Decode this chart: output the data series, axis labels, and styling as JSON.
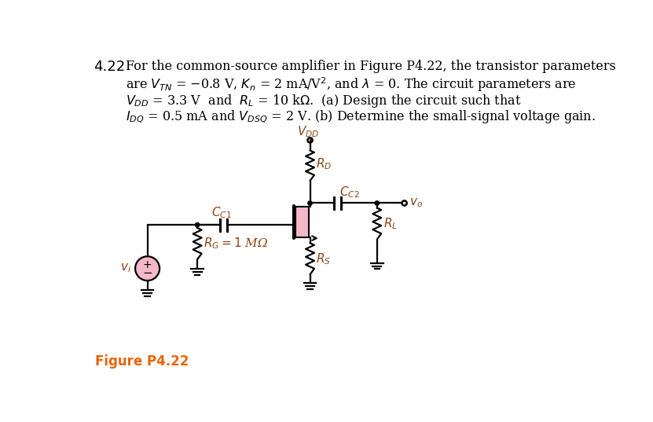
{
  "figure_label": "Figure P4.22",
  "figure_label_color": "#E8650A",
  "background_color": "#ffffff",
  "text_color": "#1a1a2e",
  "label_color": "#8B4513",
  "vdd_label": "$V_{DD}$",
  "rd_label": "$R_D$",
  "cc2_label": "$C_{C2}$",
  "vo_label": "$v_o$",
  "rl_label": "$R_L$",
  "cc1_label": "$C_{C1}$",
  "rg_label": "$R_G = 1$ MΩ",
  "vi_label": "$v_i$",
  "rs_label": "$R_S$",
  "line1": "For the common-source amplifier in Figure P4.22, the transistor parameters",
  "line2": "are $V_{TN}$ = $-$0.8 V, $K_n$ = 2 mA/V$^2$, and $\\lambda$ = 0. The circuit parameters are",
  "line3": "$V_{DD}$ = 3.3 V  and  $R_L$ = 10 k$\\Omega$.  (a) Design the circuit such that",
  "line4": "$I_{DQ}$ = 0.5 mA and $V_{DSQ}$ = 2 V. (b) Determine the small-signal voltage gain.",
  "problem_number": "4.22"
}
